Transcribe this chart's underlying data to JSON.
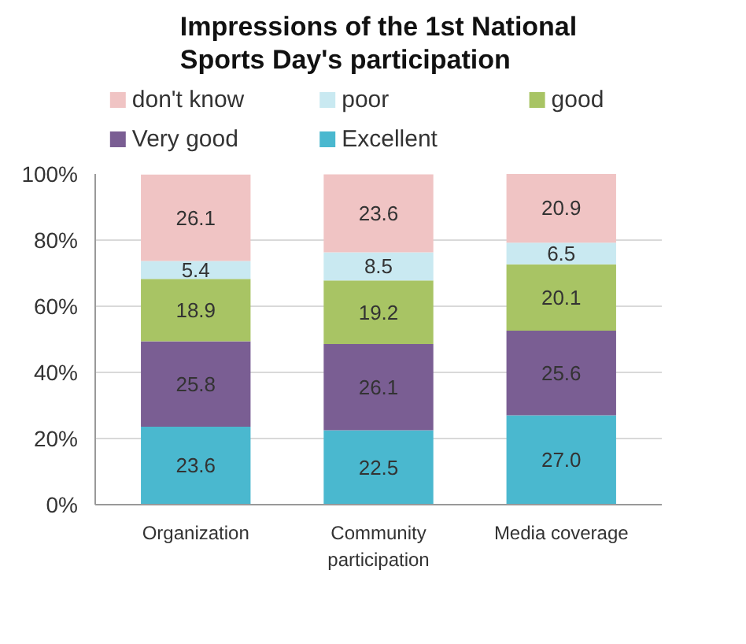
{
  "chart_data": {
    "type": "bar",
    "title": "Impressions of the 1st National Sports Day's participation",
    "categories": [
      "Organization",
      "Community participation",
      "Media coverage"
    ],
    "stacked": true,
    "series": [
      {
        "name": "Excellent",
        "color": "#4ab8cf",
        "values": [
          23.6,
          22.5,
          27.0
        ],
        "value_labels": [
          "23.6",
          "22.5",
          "27.0"
        ]
      },
      {
        "name": "Very good",
        "color": "#7a5e93",
        "values": [
          25.8,
          26.1,
          25.6
        ],
        "value_labels": [
          "25.8",
          "26.1",
          "25.6"
        ]
      },
      {
        "name": "good",
        "color": "#a8c464",
        "values": [
          18.9,
          19.2,
          20.1
        ],
        "value_labels": [
          "18.9",
          "19.2",
          "20.1"
        ]
      },
      {
        "name": "poor",
        "color": "#c9e9f1",
        "values": [
          5.4,
          8.5,
          6.5
        ],
        "value_labels": [
          "5.4",
          "8.5",
          "6.5"
        ]
      },
      {
        "name": "don't know",
        "color": "#f0c4c4",
        "values": [
          26.1,
          23.6,
          20.9
        ],
        "value_labels": [
          "26.1",
          "23.6",
          "20.9"
        ]
      }
    ],
    "ylim": [
      0,
      100
    ],
    "yticks": [
      {
        "value": 0,
        "label": "0%"
      },
      {
        "value": 20,
        "label": "20%"
      },
      {
        "value": 40,
        "label": "40%"
      },
      {
        "value": 60,
        "label": "60%"
      },
      {
        "value": 80,
        "label": "80%"
      },
      {
        "value": 100,
        "label": "100%"
      }
    ],
    "grid": "y",
    "legend": "top"
  }
}
